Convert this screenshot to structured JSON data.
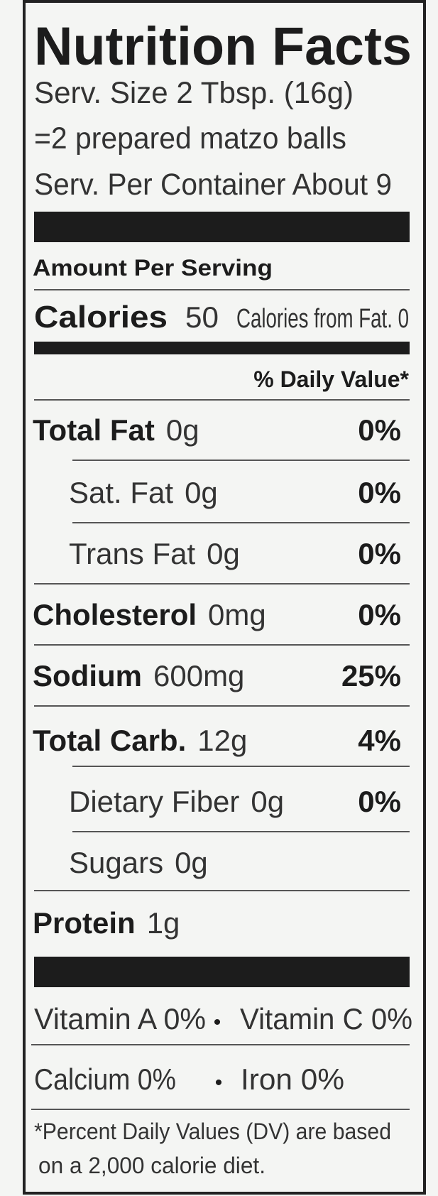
{
  "header": {
    "title": "Nutrition Facts",
    "serving_size": "Serv. Size  2 Tbsp. (16g)",
    "serving_note": "=2 prepared matzo balls",
    "servings_per_container": "Serv. Per Container  About 9"
  },
  "amount_per_serving": "Amount Per Serving",
  "calories": {
    "label": "Calories",
    "value": "50",
    "from_fat": "Calories from Fat. 0"
  },
  "daily_value_header": "% Daily Value*",
  "nutrients": [
    {
      "name": "Total Fat",
      "amount": "0g",
      "percent": "0%",
      "bold": true,
      "indent": false
    },
    {
      "name": "Sat. Fat",
      "amount": "0g",
      "percent": "0%",
      "bold": false,
      "indent": true
    },
    {
      "name": "Trans Fat",
      "amount": "0g",
      "percent": "0%",
      "bold": false,
      "indent": true
    },
    {
      "name": "Cholesterol",
      "amount": "0mg",
      "percent": "0%",
      "bold": true,
      "indent": false
    },
    {
      "name": "Sodium",
      "amount": "600mg",
      "percent": "25%",
      "bold": true,
      "indent": false
    },
    {
      "name": "Total Carb.",
      "amount": "12g",
      "percent": "4%",
      "bold": true,
      "indent": false
    },
    {
      "name": "Dietary Fiber",
      "amount": "0g",
      "percent": "0%",
      "bold": false,
      "indent": true
    },
    {
      "name": "Sugars",
      "amount": "0g",
      "percent": null,
      "bold": false,
      "indent": true
    },
    {
      "name": "Protein",
      "amount": "1g",
      "percent": null,
      "bold": true,
      "indent": false
    }
  ],
  "vitamins": [
    [
      "Vitamin A  0%",
      "Vitamin C  0%"
    ],
    [
      "Calcium  0%",
      "Iron  0%"
    ]
  ],
  "footnote": [
    "*Percent Daily Values (DV) are based",
    "on a 2,000 calorie diet."
  ]
}
